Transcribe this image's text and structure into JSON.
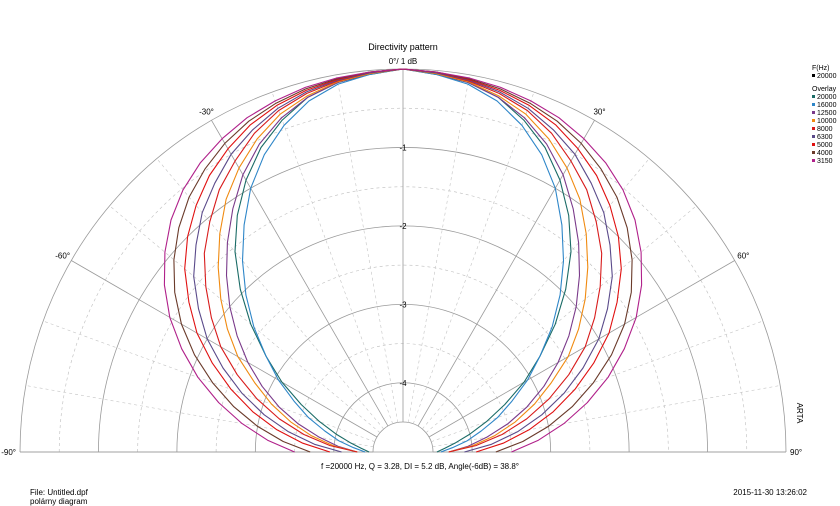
{
  "chart_data": {
    "type": "polar-line",
    "title": "Directivity pattern",
    "radial_top_label": "0°/ 1 dB",
    "angle_range": [
      -90,
      90
    ],
    "angle_tick_labels": [
      "-90°",
      "-60°",
      "-30°",
      "30°",
      "60°",
      "90°"
    ],
    "radial_range_db": [
      -4.5,
      0
    ],
    "radial_tick_labels": [
      "-1",
      "-2",
      "-3",
      "-4"
    ],
    "grid": true,
    "legend": {
      "position": "right",
      "header": "F(Hz)",
      "current": "20000",
      "overlay_header": "Overlay",
      "overlay_items": [
        "20000",
        "16000",
        "12500",
        "10000",
        "8000",
        "6300",
        "5000",
        "4000",
        "3150"
      ]
    },
    "angles_deg": [
      0,
      5,
      10,
      15,
      20,
      25,
      30,
      35,
      40,
      45,
      50,
      55,
      60,
      65,
      70,
      75,
      80,
      85,
      90
    ],
    "series": [
      {
        "name": "20000",
        "color": "#1a6b66",
        "values": [
          0,
          -0.05,
          -0.1,
          -0.2,
          -0.38,
          -0.6,
          -0.88,
          -1.2,
          -1.55,
          -1.95,
          -2.35,
          -2.75,
          -3.1,
          -3.45,
          -3.75,
          -4.0,
          -4.2,
          -4.35,
          -4.45
        ]
      },
      {
        "name": "16000",
        "color": "#2e86c8",
        "values": [
          0,
          -0.05,
          -0.12,
          -0.25,
          -0.45,
          -0.7,
          -1.0,
          -1.35,
          -1.7,
          -2.05,
          -2.4,
          -2.75,
          -3.05,
          -3.35,
          -3.6,
          -3.85,
          -4.05,
          -4.25,
          -4.4
        ]
      },
      {
        "name": "12500",
        "color": "#7a3a8a",
        "values": [
          0,
          -0.04,
          -0.1,
          -0.2,
          -0.35,
          -0.55,
          -0.8,
          -1.1,
          -1.4,
          -1.7,
          -2.0,
          -2.3,
          -2.6,
          -2.9,
          -3.2,
          -3.5,
          -3.8,
          -4.05,
          -4.3
        ]
      },
      {
        "name": "10000",
        "color": "#f08a10",
        "values": [
          0,
          -0.04,
          -0.09,
          -0.18,
          -0.3,
          -0.48,
          -0.7,
          -0.95,
          -1.25,
          -1.55,
          -1.85,
          -2.15,
          -2.45,
          -2.8,
          -3.1,
          -3.4,
          -3.7,
          -4.0,
          -4.3
        ]
      },
      {
        "name": "8000",
        "color": "#d81b1b",
        "values": [
          0,
          -0.03,
          -0.08,
          -0.15,
          -0.25,
          -0.4,
          -0.6,
          -0.8,
          -1.05,
          -1.3,
          -1.6,
          -1.9,
          -2.2,
          -2.55,
          -2.9,
          -3.25,
          -3.6,
          -3.95,
          -4.3
        ]
      },
      {
        "name": "6300",
        "color": "#5a4a8a",
        "values": [
          0,
          -0.03,
          -0.07,
          -0.13,
          -0.22,
          -0.35,
          -0.5,
          -0.7,
          -0.9,
          -1.15,
          -1.4,
          -1.7,
          -2.0,
          -2.35,
          -2.7,
          -3.05,
          -3.4,
          -3.75,
          -4.1
        ]
      },
      {
        "name": "5000",
        "color": "#e01010",
        "values": [
          0,
          -0.02,
          -0.06,
          -0.11,
          -0.18,
          -0.28,
          -0.42,
          -0.58,
          -0.78,
          -1.0,
          -1.25,
          -1.55,
          -1.85,
          -2.2,
          -2.55,
          -2.9,
          -3.25,
          -3.6,
          -3.95
        ]
      },
      {
        "name": "4000",
        "color": "#6a3a2a",
        "values": [
          0,
          -0.02,
          -0.05,
          -0.09,
          -0.15,
          -0.23,
          -0.34,
          -0.48,
          -0.64,
          -0.84,
          -1.07,
          -1.33,
          -1.62,
          -1.95,
          -2.3,
          -2.65,
          -3.0,
          -3.35,
          -3.7
        ]
      },
      {
        "name": "3150",
        "color": "#b0208a",
        "values": [
          0,
          -0.02,
          -0.04,
          -0.07,
          -0.12,
          -0.18,
          -0.27,
          -0.38,
          -0.52,
          -0.7,
          -0.92,
          -1.17,
          -1.45,
          -1.77,
          -2.1,
          -2.45,
          -2.8,
          -3.15,
          -3.5
        ]
      }
    ],
    "footer": {
      "parameters": "f =20000 Hz,  Q =  3.28,  DI =   5.2 dB,  Angle(-6dB) =  38.8°",
      "file": "File: Untitled.dpf",
      "subtitle": "polárny diagram",
      "timestamp": "2015-11-30  13:26:02",
      "watermark": "ARTA"
    }
  }
}
